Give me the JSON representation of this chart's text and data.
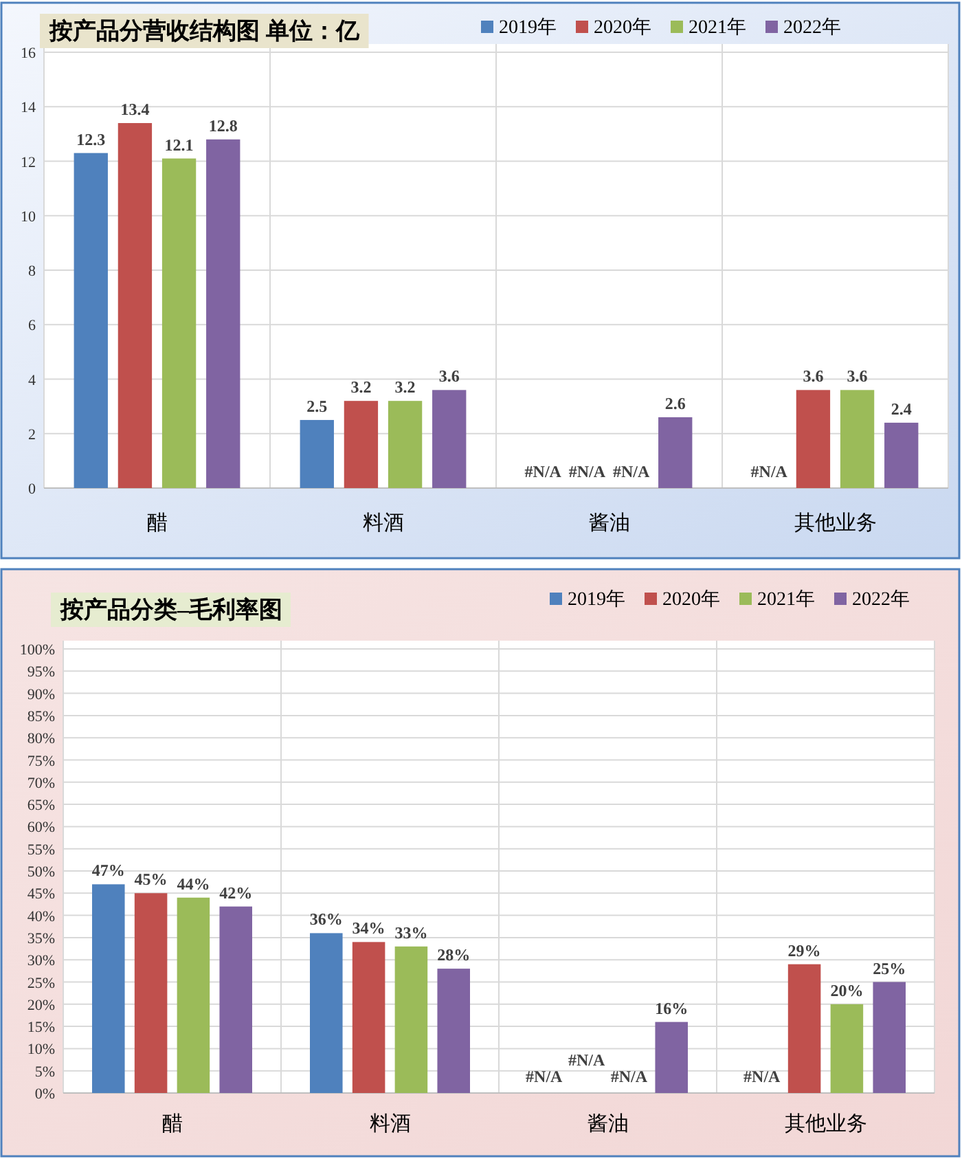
{
  "chart_data": [
    {
      "type": "bar",
      "title": "按产品分营收结构图 单位：亿",
      "categories": [
        "醋",
        "料酒",
        "酱油",
        "其他业务"
      ],
      "ylim": [
        0,
        16
      ],
      "yticks": [
        0,
        2,
        4,
        6,
        8,
        10,
        12,
        14,
        16
      ],
      "grid": true,
      "legend": "top right",
      "series": [
        {
          "name": "2019年",
          "color": "#4f81bd",
          "values": [
            12.3,
            2.5,
            null,
            null
          ],
          "value_labels": [
            "12.3",
            "2.5",
            "#N/A",
            "#N/A"
          ]
        },
        {
          "name": "2020年",
          "color": "#c0504d",
          "values": [
            13.4,
            3.2,
            null,
            3.6
          ],
          "value_labels": [
            "13.4",
            "3.2",
            "#N/A",
            "3.6"
          ]
        },
        {
          "name": "2021年",
          "color": "#9bbb59",
          "values": [
            12.1,
            3.2,
            null,
            3.6
          ],
          "value_labels": [
            "12.1",
            "3.2",
            "#N/A",
            "3.6"
          ]
        },
        {
          "name": "2022年",
          "color": "#8064a2",
          "values": [
            12.8,
            3.6,
            2.6,
            2.4
          ],
          "value_labels": [
            "12.8",
            "3.6",
            "2.6",
            "2.4"
          ]
        }
      ]
    },
    {
      "type": "bar",
      "title": "按产品分类–毛利率图",
      "categories": [
        "醋",
        "料酒",
        "酱油",
        "其他业务"
      ],
      "ylim": [
        0,
        100
      ],
      "grid": true,
      "legend": "top right",
      "yticks": [
        {
          "value": 0,
          "label": "0%"
        },
        {
          "value": 5,
          "label": "5%"
        },
        {
          "value": 10,
          "label": "10%"
        },
        {
          "value": 15,
          "label": "15%"
        },
        {
          "value": 20,
          "label": "20%"
        },
        {
          "value": 25,
          "label": "25%"
        },
        {
          "value": 30,
          "label": "30%"
        },
        {
          "value": 35,
          "label": "35%"
        },
        {
          "value": 40,
          "label": "40%"
        },
        {
          "value": 45,
          "label": "45%"
        },
        {
          "value": 50,
          "label": "50%"
        },
        {
          "value": 55,
          "label": "55%"
        },
        {
          "value": 60,
          "label": "60%"
        },
        {
          "value": 65,
          "label": "65%"
        },
        {
          "value": 70,
          "label": "70%"
        },
        {
          "value": 75,
          "label": "75%"
        },
        {
          "value": 80,
          "label": "80%"
        },
        {
          "value": 85,
          "label": "85%"
        },
        {
          "value": 90,
          "label": "90%"
        },
        {
          "value": 95,
          "label": "95%"
        },
        {
          "value": 100,
          "label": "100%"
        }
      ],
      "series": [
        {
          "name": "2019年",
          "color": "#4f81bd",
          "values": [
            47,
            36,
            null,
            null
          ],
          "value_labels": [
            "47%",
            "36%",
            "#N/A",
            "#N/A"
          ]
        },
        {
          "name": "2020年",
          "color": "#c0504d",
          "values": [
            45,
            34,
            null,
            29
          ],
          "value_labels": [
            "45%",
            "34%",
            "#N/A",
            "29%"
          ]
        },
        {
          "name": "2021年",
          "color": "#9bbb59",
          "values": [
            44,
            33,
            null,
            20
          ],
          "value_labels": [
            "44%",
            "33%",
            "#N/A",
            "20%"
          ]
        },
        {
          "name": "2022年",
          "color": "#8064a2",
          "values": [
            42,
            28,
            16,
            25
          ],
          "value_labels": [
            "42%",
            "28%",
            "16%",
            "25%"
          ]
        }
      ]
    }
  ]
}
